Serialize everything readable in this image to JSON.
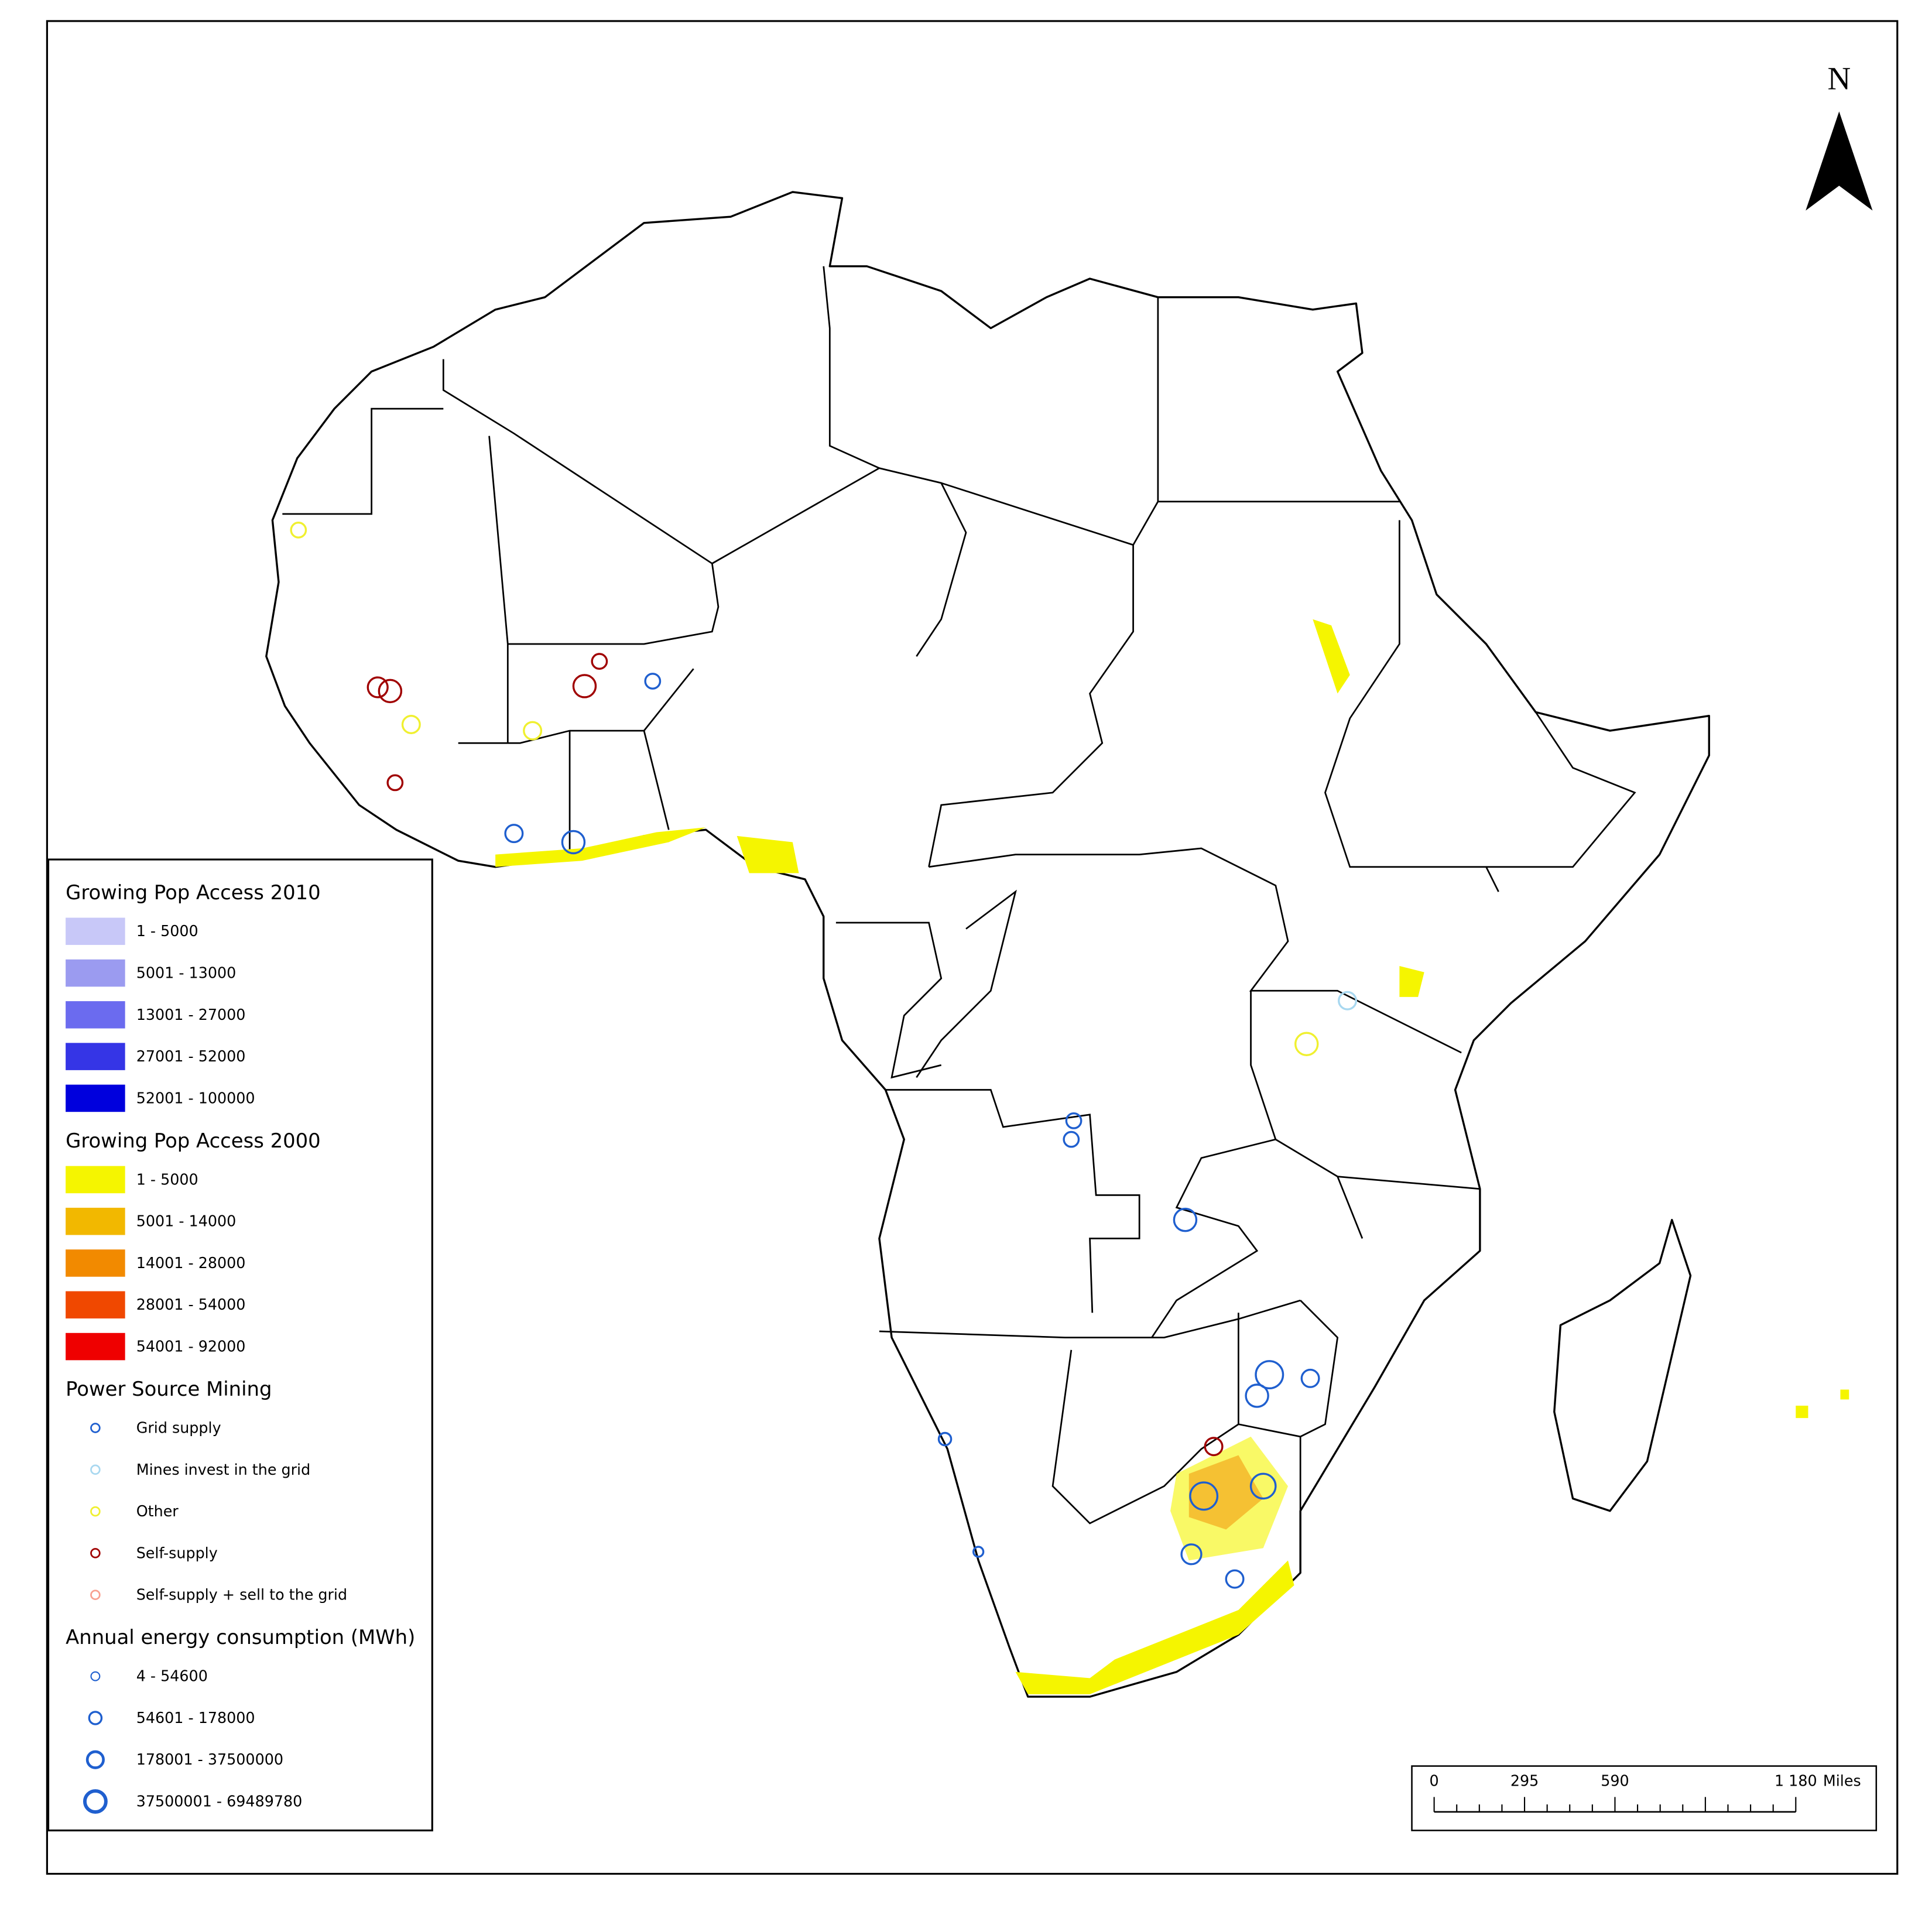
{
  "north": "N",
  "legend": {
    "sections": [
      {
        "title": "Growing Pop Access 2010",
        "symbol": "swatch",
        "items": [
          {
            "label": "1 - 5000",
            "color": "#c8c8f8"
          },
          {
            "label": "5001 - 13000",
            "color": "#9b9bf0"
          },
          {
            "label": "13001 - 27000",
            "color": "#6b6bef"
          },
          {
            "label": "27001 - 52000",
            "color": "#3535e6"
          },
          {
            "label": "52001 - 100000",
            "color": "#0000dd"
          }
        ]
      },
      {
        "title": "Growing Pop Access 2000",
        "symbol": "swatch",
        "items": [
          {
            "label": "1 - 5000",
            "color": "#f5f500"
          },
          {
            "label": "5001 - 14000",
            "color": "#f2b800"
          },
          {
            "label": "14001 - 28000",
            "color": "#f28a00"
          },
          {
            "label": "28001 - 54000",
            "color": "#f04800"
          },
          {
            "label": "54001 - 92000",
            "color": "#ef0000"
          }
        ]
      },
      {
        "title": "Power Source Mining",
        "symbol": "circle",
        "items": [
          {
            "label": "Grid supply",
            "color": "#1f5fcf"
          },
          {
            "label": "Mines invest in the grid",
            "color": "#a8d8f0"
          },
          {
            "label": "Other",
            "color": "#f0f030"
          },
          {
            "label": "Self-supply",
            "color": "#a00000"
          },
          {
            "label": "Self-supply + sell to the grid",
            "color": "#f8a090"
          }
        ]
      },
      {
        "title": "Annual energy consumption (MWh)",
        "symbol": "sized-circle",
        "color": "#1f5fcf",
        "items": [
          {
            "label": "4 - 54600"
          },
          {
            "label": "54601 - 178000"
          },
          {
            "label": "178001 - 37500000"
          },
          {
            "label": "37500001 - 69489780"
          }
        ]
      }
    ]
  },
  "scale_bar": {
    "labels": [
      "0",
      "295",
      "590",
      "1 180"
    ],
    "unit": "Miles"
  }
}
